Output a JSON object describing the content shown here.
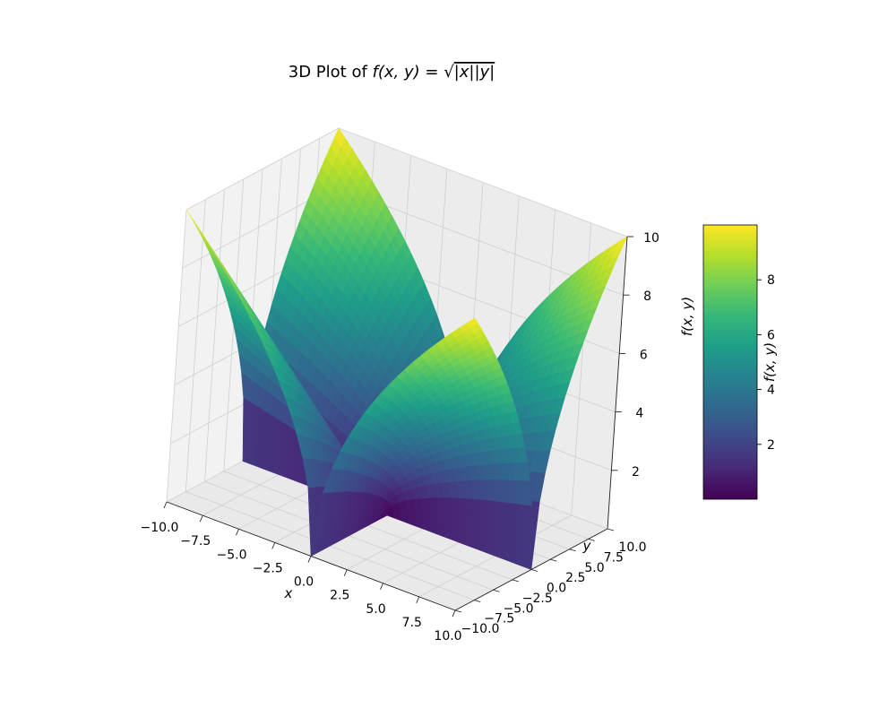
{
  "chart_data": {
    "type": "surface",
    "title": "3D Plot of f(x, y) = √|x||y|",
    "title_parts": {
      "prefix": "3D Plot of ",
      "lhs": "f(x, y) = ",
      "radical": "√",
      "radicand": "|x||y|"
    },
    "function": "f(x, y) = sqrt(|x| * |y|)",
    "xlabel": "x",
    "ylabel": "y",
    "zlabel": "f(x, y)",
    "xlim": [
      -10,
      10
    ],
    "ylim": [
      -10,
      10
    ],
    "zlim": [
      0,
      10
    ],
    "x_ticks": [
      "−10.0",
      "−7.5",
      "−5.0",
      "−2.5",
      "0.0",
      "2.5",
      "5.0",
      "7.5",
      "10.0"
    ],
    "y_ticks": [
      "−10.0",
      "−7.5",
      "−5.0",
      "−2.5",
      "0.0",
      "2.5",
      "5.0",
      "7.5",
      "10.0"
    ],
    "z_ticks": [
      "2",
      "4",
      "6",
      "8",
      "10"
    ],
    "colorbar": {
      "label": "f(x, y)",
      "ticks": [
        "2",
        "4",
        "6",
        "8"
      ],
      "range": [
        0,
        10
      ],
      "colormap": "viridis"
    },
    "grid": true,
    "colors": {
      "viridis": [
        "#440154",
        "#482878",
        "#3e4a89",
        "#31688e",
        "#26828e",
        "#1f9e89",
        "#35b779",
        "#6ece58",
        "#b5de2b",
        "#fde725"
      ],
      "pane": "#f2f2f2",
      "grid": "#cfcfcf"
    }
  }
}
